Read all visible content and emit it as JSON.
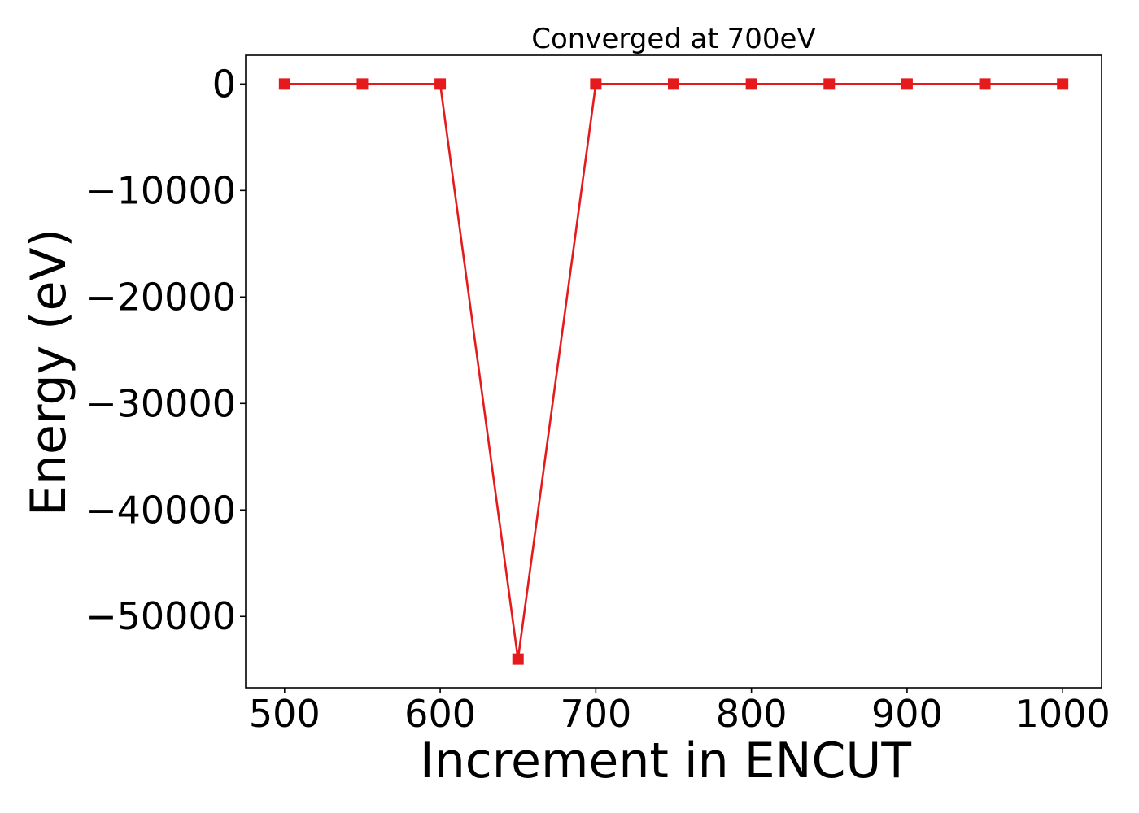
{
  "chart_data": {
    "type": "line",
    "title": "Converged at 700eV",
    "xlabel": "Increment in ENCUT",
    "ylabel": "Energy (eV)",
    "x": [
      500,
      550,
      600,
      650,
      700,
      750,
      800,
      850,
      900,
      950,
      1000
    ],
    "series": [
      {
        "values": [
          0,
          0,
          0,
          -54000,
          0,
          0,
          0,
          0,
          0,
          0,
          0
        ],
        "color": "#e41a1c",
        "marker": "square"
      }
    ],
    "xlim": [
      475,
      1025
    ],
    "ylim": [
      -56700,
      2700
    ],
    "xticks": [
      500,
      600,
      700,
      800,
      900,
      1000
    ],
    "xtick_labels": [
      "500",
      "600",
      "700",
      "800",
      "900",
      "1000"
    ],
    "yticks": [
      0,
      -10000,
      -20000,
      -30000,
      -40000,
      -50000
    ],
    "ytick_labels": [
      "0",
      "−10000",
      "−20000",
      "−30000",
      "−40000",
      "−50000"
    ],
    "grid": false,
    "legend": "none"
  }
}
